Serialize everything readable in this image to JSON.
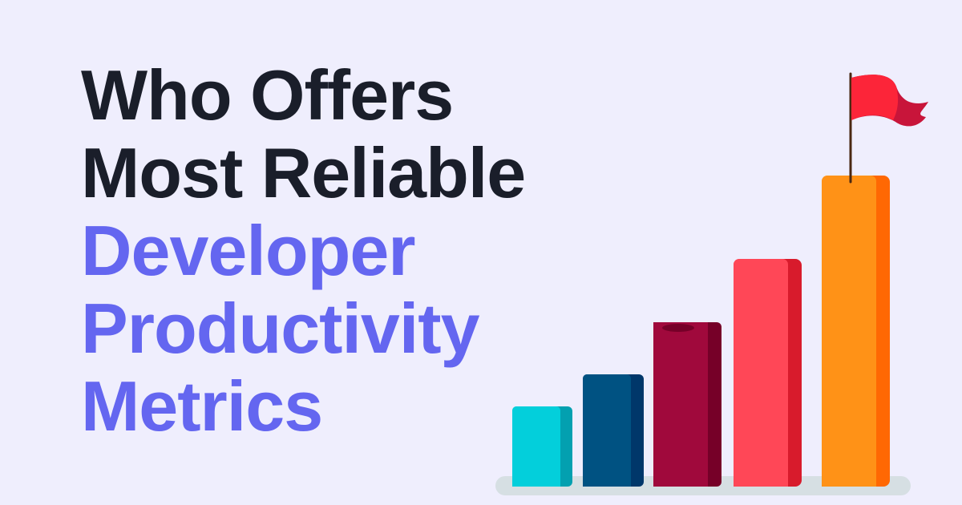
{
  "headline": {
    "lines": [
      "Who Offers",
      "Most Reliable",
      "Developer",
      "Productivity",
      "Metrics"
    ],
    "highlighted_from_line": 3
  },
  "colors": {
    "background": "#efeefd",
    "text_dark": "#1a1e2a",
    "text_accent": "#6466f0",
    "bars": [
      "#03cfdb",
      "#005282",
      "#a0093c",
      "#ff4757",
      "#ff9217"
    ],
    "flag": "#fc2539"
  },
  "illustration": {
    "type": "ascending-bar-chart-with-flag-icon",
    "bar_count": 5
  }
}
